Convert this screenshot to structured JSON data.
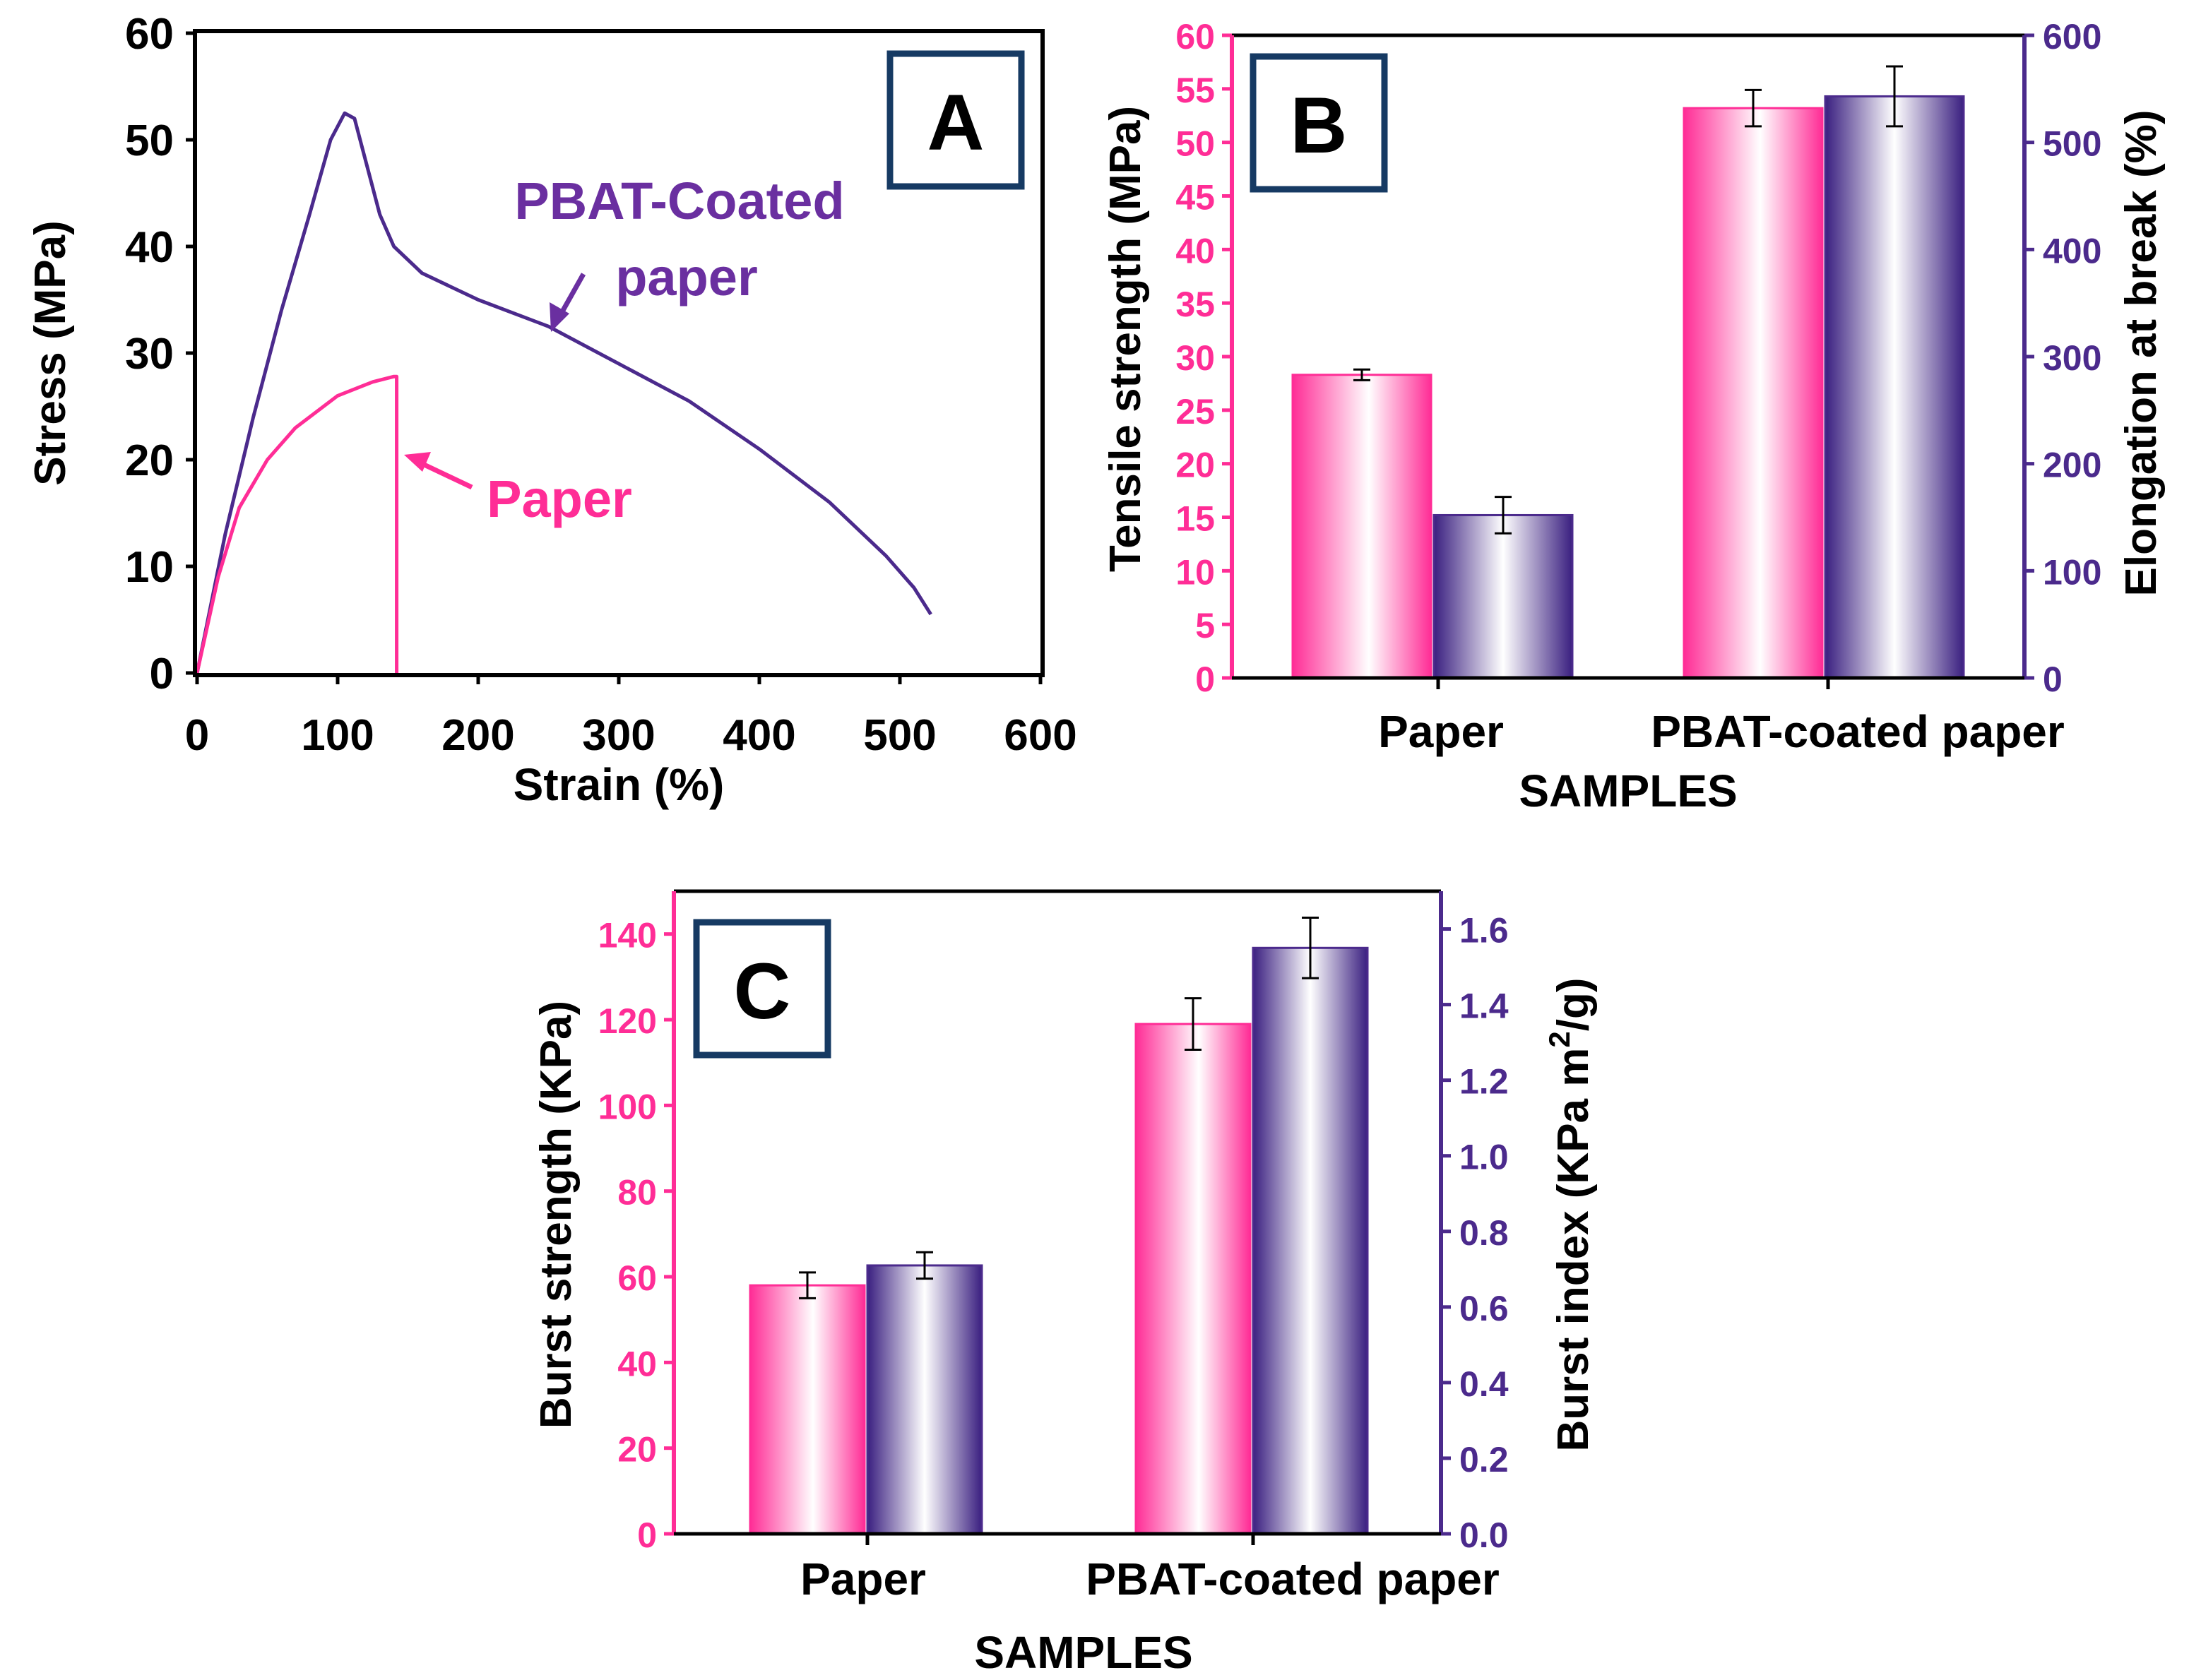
{
  "colors": {
    "pink": "#ff2d96",
    "purple": "#4b2a8c",
    "purple_text": "#6a2fa0",
    "dark": "#000000",
    "panel_border": "#163a63"
  },
  "chart_data": [
    {
      "panel": "A",
      "type": "line",
      "panel_label": "A",
      "xlabel": "Strain (%)",
      "ylabel": "Stress (MPa)",
      "xlim": [
        0,
        600
      ],
      "ylim": [
        0,
        60
      ],
      "xticks": [
        0,
        100,
        200,
        300,
        400,
        500,
        600
      ],
      "yticks": [
        0,
        10,
        20,
        30,
        40,
        50,
        60
      ],
      "annotations": {
        "pbat_line1": "PBAT-Coated",
        "pbat_line2": "paper",
        "paper": "Paper"
      },
      "series": [
        {
          "name": "PBAT-Coated paper",
          "color": "purple",
          "points": [
            [
              0,
              0
            ],
            [
              20,
              13
            ],
            [
              40,
              24
            ],
            [
              60,
              34
            ],
            [
              80,
              43
            ],
            [
              95,
              50
            ],
            [
              105,
              52.5
            ],
            [
              112,
              52
            ],
            [
              120,
              48
            ],
            [
              130,
              43
            ],
            [
              140,
              40
            ],
            [
              160,
              37.5
            ],
            [
              200,
              35
            ],
            [
              250,
              32.5
            ],
            [
              300,
              29
            ],
            [
              350,
              25.5
            ],
            [
              400,
              21
            ],
            [
              450,
              16
            ],
            [
              490,
              11
            ],
            [
              510,
              8
            ],
            [
              522,
              5.5
            ]
          ]
        },
        {
          "name": "Paper",
          "color": "pink",
          "points": [
            [
              0,
              0
            ],
            [
              15,
              9
            ],
            [
              30,
              15.5
            ],
            [
              50,
              20
            ],
            [
              70,
              23
            ],
            [
              100,
              26
            ],
            [
              125,
              27.3
            ],
            [
              140,
              27.8
            ],
            [
              142,
              27.8
            ],
            [
              142,
              0
            ]
          ]
        }
      ]
    },
    {
      "panel": "B",
      "type": "bar",
      "panel_label": "B",
      "xlabel": "SAMPLES",
      "ylabel_left": "Tensile strength (MPa)",
      "ylabel_right": "Elongation at break (%)",
      "ylim_left": [
        0,
        60
      ],
      "ylim_right": [
        0,
        600
      ],
      "yticks_left": [
        0,
        5,
        10,
        15,
        20,
        25,
        30,
        35,
        40,
        45,
        50,
        55,
        60
      ],
      "yticks_right": [
        0,
        100,
        200,
        300,
        400,
        500,
        600
      ],
      "categories": [
        "Paper",
        "PBAT-coated paper"
      ],
      "series": [
        {
          "name": "Tensile strength",
          "axis": "left",
          "color": "pink",
          "values": [
            28.3,
            53.2
          ],
          "errors": [
            0.5,
            1.7
          ]
        },
        {
          "name": "Elongation at break",
          "axis": "right",
          "color": "purple",
          "values": [
            152,
            543
          ],
          "errors": [
            17,
            28
          ]
        }
      ]
    },
    {
      "panel": "C",
      "type": "bar",
      "panel_label": "C",
      "xlabel": "SAMPLES",
      "ylabel_left": "Burst strength (KPa)",
      "ylabel_right_main": "Burst index (KPa m",
      "ylabel_right_sup": "2",
      "ylabel_right_tail": "/g)",
      "ylim_left": [
        0,
        150
      ],
      "ylim_right": [
        0,
        1.7
      ],
      "yticks_left": [
        0,
        20,
        40,
        60,
        80,
        100,
        120,
        140
      ],
      "yticks_right": [
        "0.0",
        "0.2",
        "0.4",
        "0.6",
        "0.8",
        "1.0",
        "1.2",
        "1.4",
        "1.6"
      ],
      "categories": [
        "Paper",
        "PBAT-coated paper"
      ],
      "series": [
        {
          "name": "Burst strength",
          "axis": "left",
          "color": "pink",
          "values": [
            58,
            119
          ],
          "errors": [
            3,
            6
          ]
        },
        {
          "name": "Burst index",
          "axis": "right",
          "color": "purple",
          "values": [
            0.71,
            1.55
          ],
          "errors": [
            0.035,
            0.08
          ]
        }
      ]
    }
  ]
}
